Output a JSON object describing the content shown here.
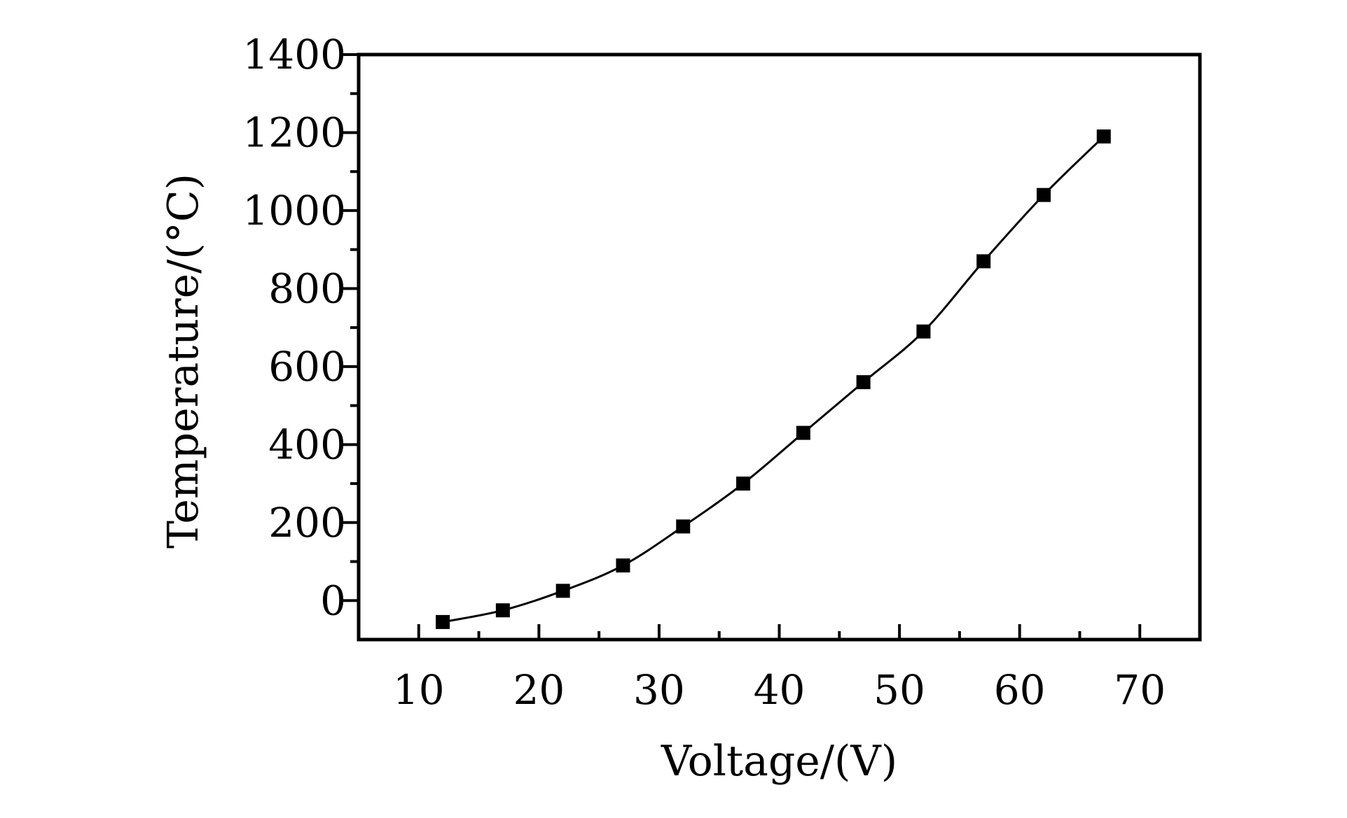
{
  "chart_data": {
    "type": "line",
    "title": "",
    "xlabel": "Voltage/(V)",
    "ylabel": "Temperature/(°C)",
    "xlim": [
      5,
      75
    ],
    "ylim": [
      -100,
      1400
    ],
    "x_major_ticks": [
      10,
      20,
      30,
      40,
      50,
      60,
      70
    ],
    "x_minor_ticks": [
      15,
      25,
      35,
      45,
      55,
      65
    ],
    "x_tick_labels": [
      "10",
      "20",
      "30",
      "40",
      "50",
      "60",
      "70"
    ],
    "y_major_ticks": [
      0,
      200,
      400,
      600,
      800,
      1000,
      1200,
      1400
    ],
    "y_minor_ticks": [
      100,
      300,
      500,
      700,
      900,
      1100,
      1300
    ],
    "y_tick_labels": [
      "0",
      "200",
      "400",
      "600",
      "800",
      "1000",
      "1200",
      "1400"
    ],
    "grid": false,
    "legend": "none",
    "marker": "square",
    "line_color": "#000000",
    "series": [
      {
        "x": [
          12,
          17,
          22,
          27,
          32,
          37,
          42,
          47,
          52,
          57,
          62,
          67
        ],
        "values": [
          -55,
          -25,
          25,
          90,
          190,
          300,
          430,
          560,
          690,
          870,
          1040,
          1190
        ]
      }
    ]
  }
}
